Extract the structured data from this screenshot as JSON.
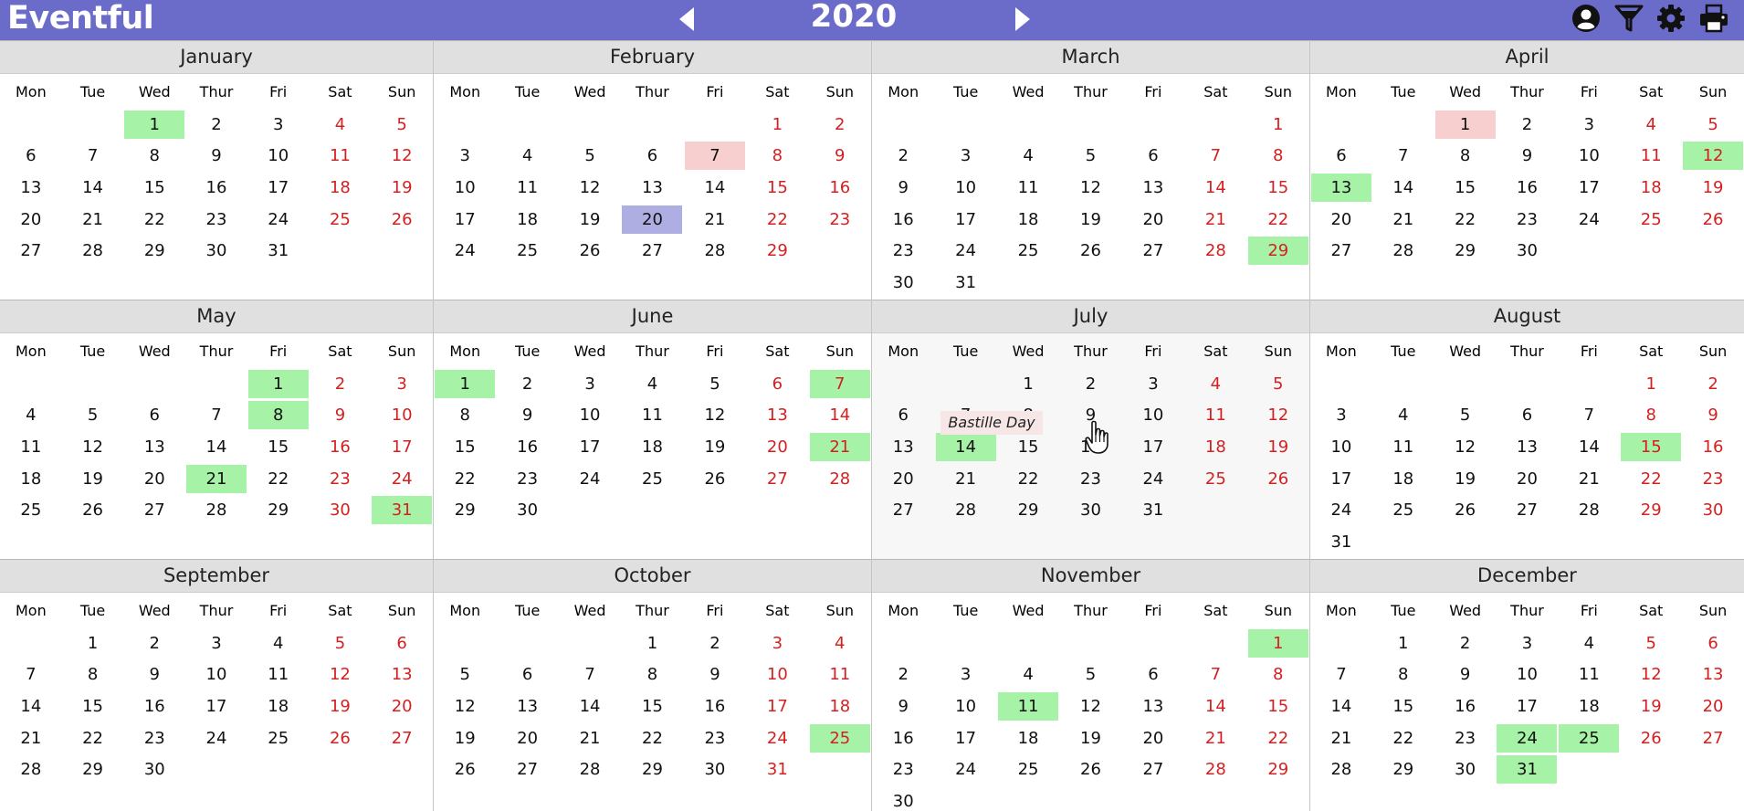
{
  "app": {
    "title": "Eventful",
    "year": "2020"
  },
  "toolbar": {
    "icons": [
      "user-icon",
      "filter-icon",
      "settings-icon",
      "print-icon"
    ]
  },
  "colors": {
    "accent": "#6b6bc9",
    "weekend": "#d42020",
    "highlight_green": "#a6f2a6",
    "highlight_pink": "#f8cfcf",
    "highlight_blue": "#aeaee2"
  },
  "weekdays": [
    "Mon",
    "Tue",
    "Wed",
    "Thur",
    "Fri",
    "Sat",
    "Sun"
  ],
  "months": [
    {
      "name": "January",
      "days": 31,
      "start_weekday": 2,
      "highlights": {
        "green": [
          1
        ]
      }
    },
    {
      "name": "February",
      "days": 29,
      "start_weekday": 5,
      "highlights": {
        "pink": [
          7
        ],
        "blue": [
          20
        ]
      }
    },
    {
      "name": "March",
      "days": 31,
      "start_weekday": 6,
      "highlights": {
        "green": [
          29
        ]
      }
    },
    {
      "name": "April",
      "days": 30,
      "start_weekday": 2,
      "highlights": {
        "pink": [
          1
        ],
        "green": [
          12,
          13
        ]
      }
    },
    {
      "name": "May",
      "days": 31,
      "start_weekday": 4,
      "highlights": {
        "green": [
          1,
          8,
          21,
          31
        ]
      }
    },
    {
      "name": "June",
      "days": 30,
      "start_weekday": 0,
      "highlights": {
        "green": [
          1,
          7,
          21
        ]
      }
    },
    {
      "name": "July",
      "days": 31,
      "start_weekday": 2,
      "highlights": {
        "green": [
          14
        ]
      }
    },
    {
      "name": "August",
      "days": 31,
      "start_weekday": 5,
      "highlights": {
        "green": [
          15
        ]
      }
    },
    {
      "name": "September",
      "days": 30,
      "start_weekday": 1,
      "highlights": {}
    },
    {
      "name": "October",
      "days": 31,
      "start_weekday": 3,
      "highlights": {
        "green": [
          25
        ]
      }
    },
    {
      "name": "November",
      "days": 30,
      "start_weekday": 6,
      "highlights": {
        "green": [
          1,
          11
        ]
      }
    },
    {
      "name": "December",
      "days": 31,
      "start_weekday": 1,
      "highlights": {
        "green": [
          24,
          25,
          31
        ]
      }
    }
  ],
  "hovered_month": "July",
  "tooltip": {
    "text": "Bastille Day"
  }
}
